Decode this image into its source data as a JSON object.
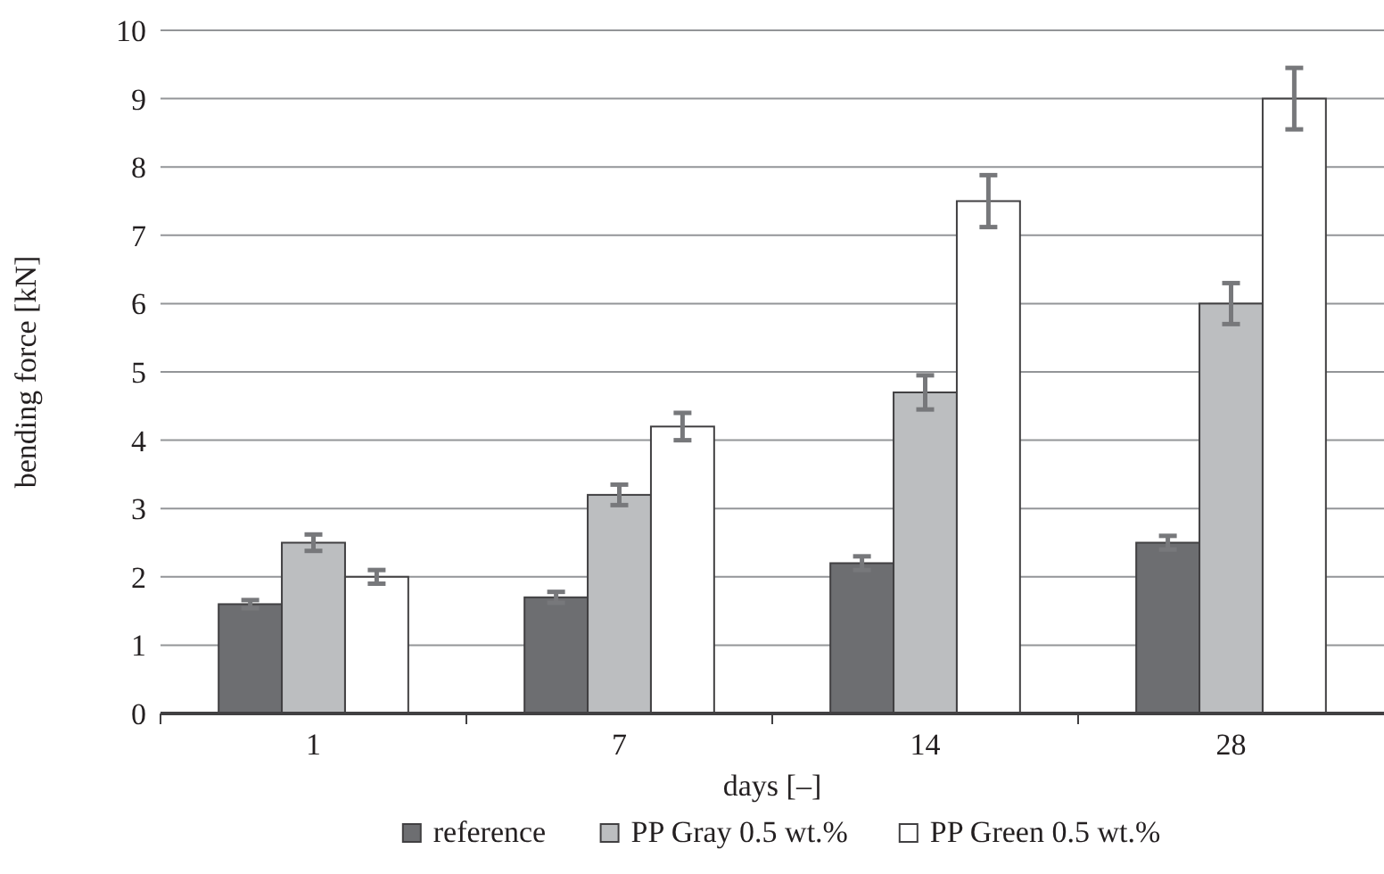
{
  "chart_data": {
    "type": "bar",
    "xlabel": "days [–]",
    "ylabel": "bending force [kN]",
    "categories": [
      "1",
      "7",
      "14",
      "28"
    ],
    "series": [
      {
        "name": "reference",
        "color": "#6d6e71",
        "values": [
          1.6,
          1.7,
          2.2,
          2.5
        ],
        "errors": [
          0.06,
          0.08,
          0.1,
          0.1
        ]
      },
      {
        "name": "PP Gray 0.5 wt.%",
        "color": "#bcbec0",
        "values": [
          2.5,
          3.2,
          4.7,
          6.0
        ],
        "errors": [
          0.12,
          0.15,
          0.25,
          0.3
        ]
      },
      {
        "name": "PP Green 0.5 wt.%",
        "color": "#ffffff",
        "values": [
          2.0,
          4.2,
          7.5,
          9.0
        ],
        "errors": [
          0.1,
          0.2,
          0.38,
          0.45
        ]
      }
    ],
    "ylim": [
      0,
      10
    ],
    "yticks": [
      0,
      1,
      2,
      3,
      4,
      5,
      6,
      7,
      8,
      9,
      10
    ],
    "grid": "y",
    "legend": "bottom"
  }
}
